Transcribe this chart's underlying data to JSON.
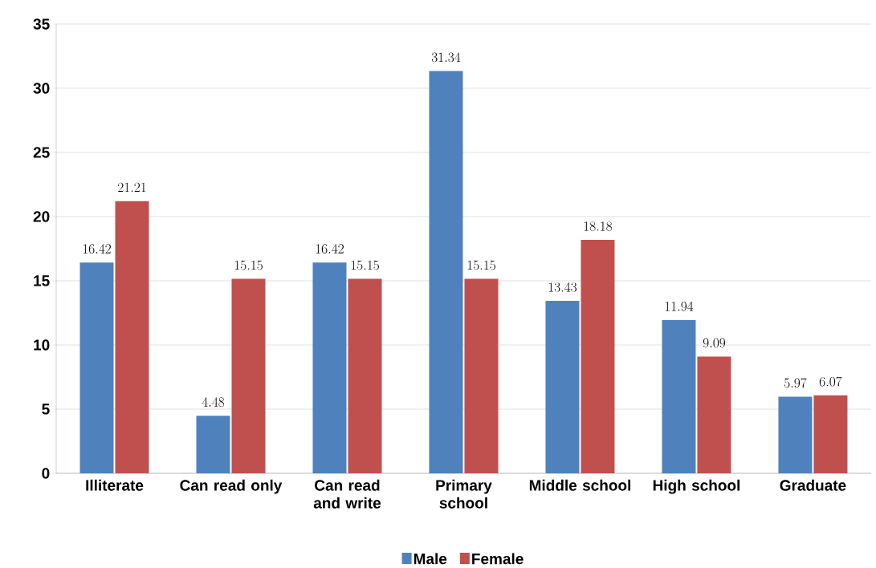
{
  "chart_data": {
    "type": "bar",
    "categories": [
      "Illiterate",
      "Can read only",
      "Can read and write",
      "Primary school",
      "Middle school",
      "High school",
      "Graduate"
    ],
    "series": [
      {
        "name": "Male",
        "color": "#4f81bd",
        "values": [
          16.42,
          4.48,
          16.42,
          31.34,
          13.43,
          11.94,
          5.97
        ]
      },
      {
        "name": "Female",
        "color": "#c0504d",
        "values": [
          21.21,
          15.15,
          15.15,
          15.15,
          18.18,
          9.09,
          6.07
        ]
      }
    ],
    "ylim": [
      0,
      35
    ],
    "yticks": [
      0,
      5,
      10,
      15,
      20,
      25,
      30,
      35
    ],
    "grid": "y",
    "legend": "bottom",
    "data_labels": true
  }
}
